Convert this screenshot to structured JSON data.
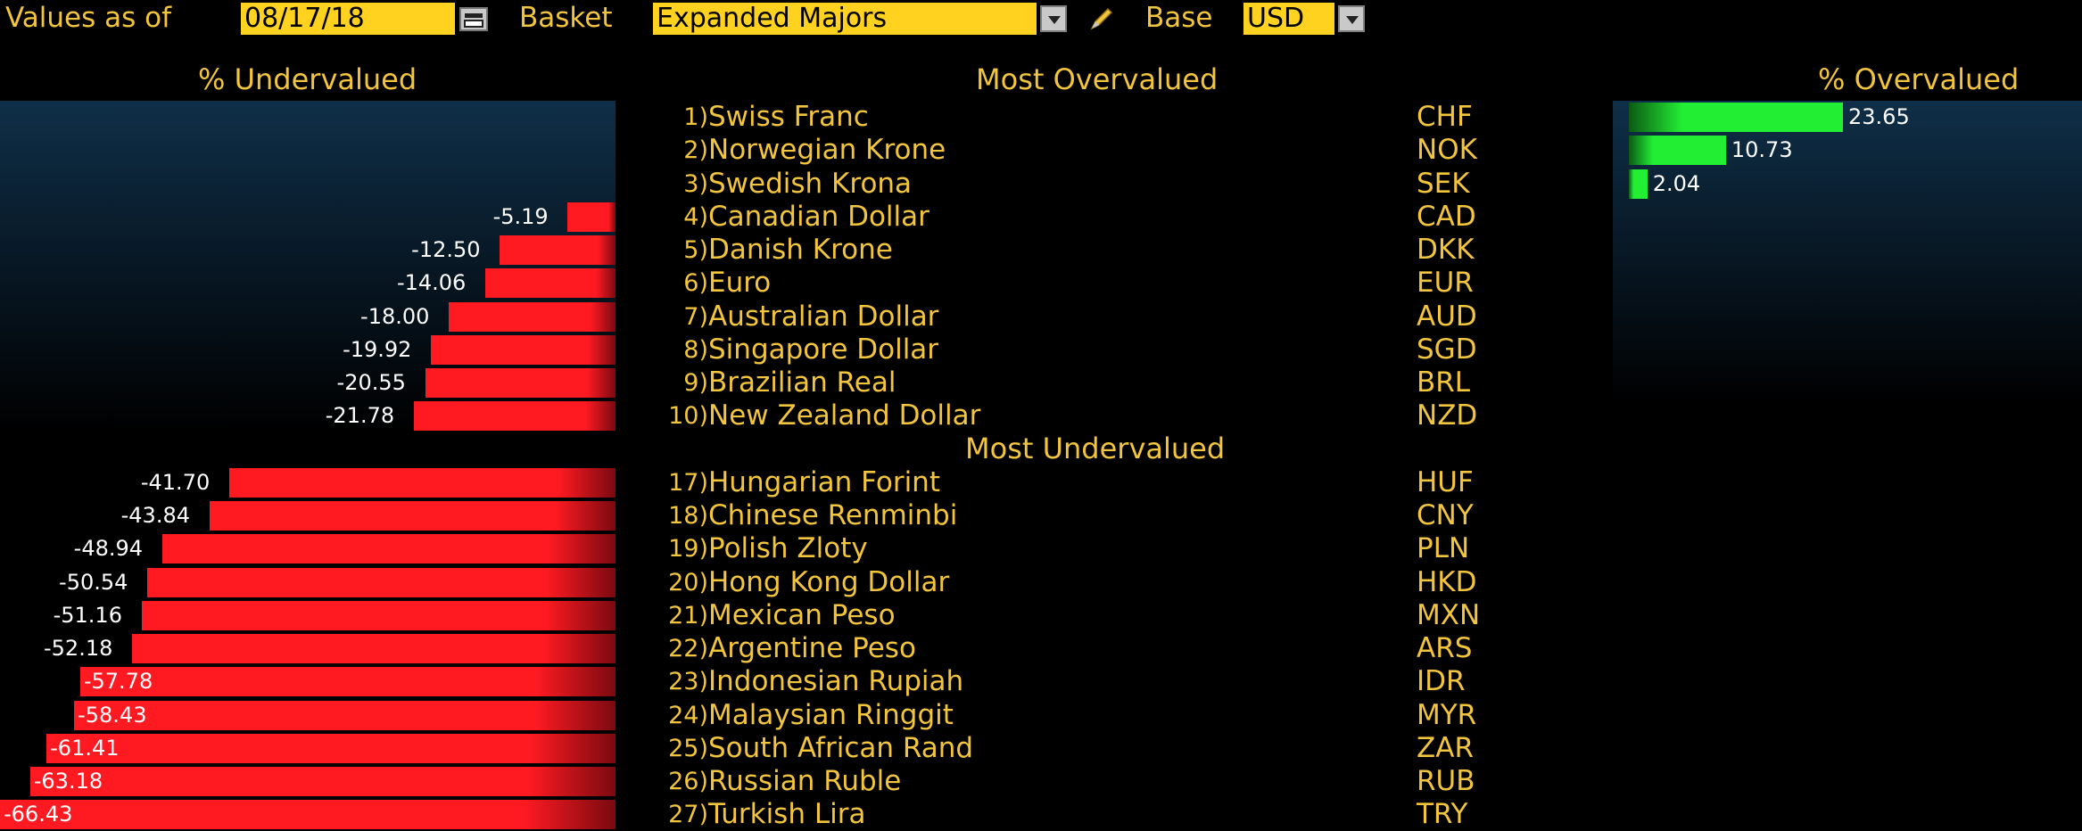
{
  "toolbar": {
    "values_as_of_label": "Values as of",
    "date": "08/17/18",
    "basket_label": "Basket",
    "basket_value": "Expanded Majors",
    "base_label": "Base",
    "base_value": "USD"
  },
  "headers": {
    "undervalued": "% Undervalued",
    "overvalued": "% Overvalued",
    "most_overvalued": "Most Overvalued",
    "most_undervalued": "Most Undervalued"
  },
  "colors": {
    "text": "#f2c53d",
    "negative_bar": "#ff1a22",
    "positive_bar": "#22ee33",
    "background": "#000000"
  },
  "chart_data": {
    "type": "bar",
    "x_range_left": [
      -66.43,
      0
    ],
    "x_range_right": [
      0,
      23.65
    ],
    "groups": [
      {
        "title": "Most Overvalued",
        "rows": [
          {
            "rank": "1)",
            "name": "Swiss Franc",
            "code": "CHF",
            "value": 23.65
          },
          {
            "rank": "2)",
            "name": "Norwegian Krone",
            "code": "NOK",
            "value": 10.73
          },
          {
            "rank": "3)",
            "name": "Swedish Krona",
            "code": "SEK",
            "value": 2.04
          },
          {
            "rank": "4)",
            "name": "Canadian Dollar",
            "code": "CAD",
            "value": -5.19
          },
          {
            "rank": "5)",
            "name": "Danish Krone",
            "code": "DKK",
            "value": -12.5
          },
          {
            "rank": "6)",
            "name": "Euro",
            "code": "EUR",
            "value": -14.06
          },
          {
            "rank": "7)",
            "name": "Australian Dollar",
            "code": "AUD",
            "value": -18.0
          },
          {
            "rank": "8)",
            "name": "Singapore Dollar",
            "code": "SGD",
            "value": -19.92
          },
          {
            "rank": "9)",
            "name": "Brazilian Real",
            "code": "BRL",
            "value": -20.55
          },
          {
            "rank": "10)",
            "name": "New Zealand Dollar",
            "code": "NZD",
            "value": -21.78
          }
        ]
      },
      {
        "title": "Most Undervalued",
        "rows": [
          {
            "rank": "17)",
            "name": "Hungarian Forint",
            "code": "HUF",
            "value": -41.7
          },
          {
            "rank": "18)",
            "name": "Chinese Renminbi",
            "code": "CNY",
            "value": -43.84
          },
          {
            "rank": "19)",
            "name": "Polish Zloty",
            "code": "PLN",
            "value": -48.94
          },
          {
            "rank": "20)",
            "name": "Hong Kong Dollar",
            "code": "HKD",
            "value": -50.54
          },
          {
            "rank": "21)",
            "name": "Mexican Peso",
            "code": "MXN",
            "value": -51.16
          },
          {
            "rank": "22)",
            "name": "Argentine Peso",
            "code": "ARS",
            "value": -52.18
          },
          {
            "rank": "23)",
            "name": "Indonesian Rupiah",
            "code": "IDR",
            "value": -57.78
          },
          {
            "rank": "24)",
            "name": "Malaysian Ringgit",
            "code": "MYR",
            "value": -58.43
          },
          {
            "rank": "25)",
            "name": "South African Rand",
            "code": "ZAR",
            "value": -61.41
          },
          {
            "rank": "26)",
            "name": "Russian Ruble",
            "code": "RUB",
            "value": -63.18
          },
          {
            "rank": "27)",
            "name": "Turkish Lira",
            "code": "TRY",
            "value": -66.43
          }
        ]
      }
    ]
  }
}
